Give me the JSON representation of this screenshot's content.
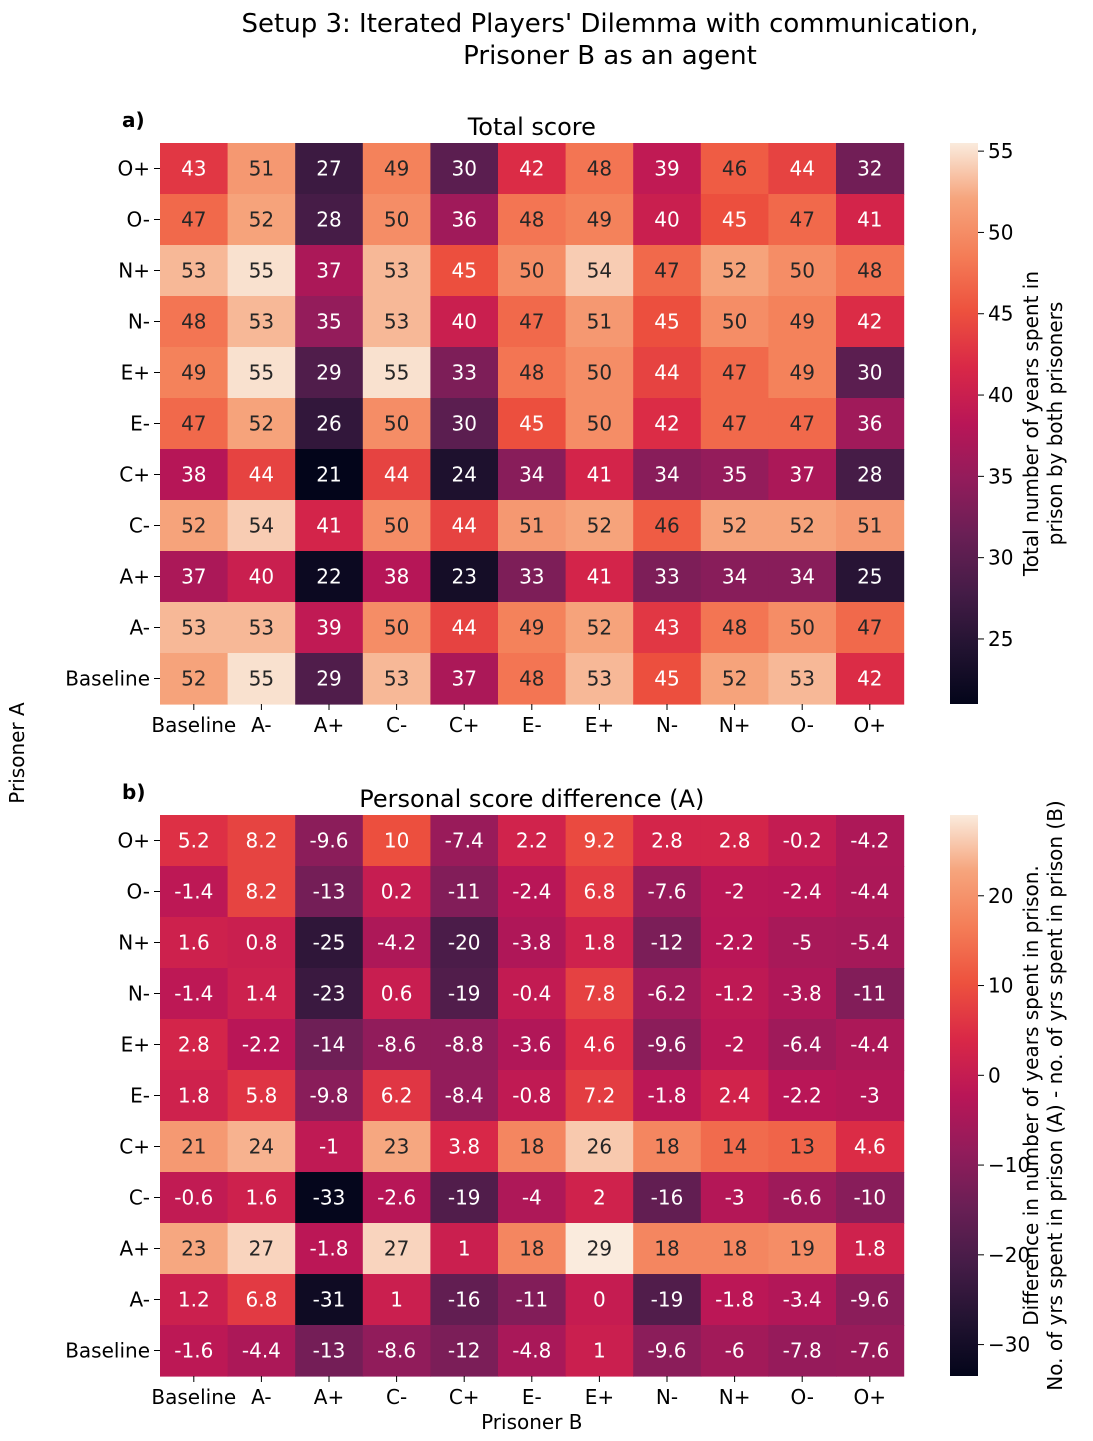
{
  "figure": {
    "title_line1": "Setup 3: Iterated Players' Dilemma with communication,",
    "title_line2": "Prisoner B as an agent",
    "ylabel": "Prisoner A",
    "xlabel": "Prisoner B"
  },
  "chart_data": [
    {
      "type": "heatmap",
      "panel": "a)",
      "title": "Total score",
      "xlabel": "Prisoner B",
      "ylabel": "Prisoner A",
      "x_categories": [
        "Baseline",
        "A-",
        "A+",
        "C-",
        "C+",
        "E-",
        "E+",
        "N-",
        "N+",
        "O-",
        "O+"
      ],
      "y_categories": [
        "O+",
        "O-",
        "N+",
        "N-",
        "E+",
        "E-",
        "C+",
        "C-",
        "A+",
        "A-",
        "Baseline"
      ],
      "values": [
        [
          43,
          51,
          27,
          49,
          30,
          42,
          48,
          39,
          46,
          44,
          32
        ],
        [
          47,
          52,
          28,
          50,
          36,
          48,
          49,
          40,
          45,
          47,
          41
        ],
        [
          53,
          55,
          37,
          53,
          45,
          50,
          54,
          47,
          52,
          50,
          48
        ],
        [
          48,
          53,
          35,
          53,
          40,
          47,
          51,
          45,
          50,
          49,
          42
        ],
        [
          49,
          55,
          29,
          55,
          33,
          48,
          50,
          44,
          47,
          49,
          30
        ],
        [
          47,
          52,
          26,
          50,
          30,
          45,
          50,
          42,
          47,
          47,
          36
        ],
        [
          38,
          44,
          21,
          44,
          24,
          34,
          41,
          34,
          35,
          37,
          28
        ],
        [
          52,
          54,
          41,
          50,
          44,
          51,
          52,
          46,
          52,
          52,
          51
        ],
        [
          37,
          40,
          22,
          38,
          23,
          33,
          41,
          33,
          34,
          34,
          25
        ],
        [
          53,
          53,
          39,
          50,
          44,
          49,
          52,
          43,
          48,
          50,
          47
        ],
        [
          52,
          55,
          29,
          53,
          37,
          48,
          53,
          45,
          52,
          53,
          42
        ]
      ],
      "labels": [
        [
          "43",
          "51",
          "27",
          "49",
          "30",
          "42",
          "48",
          "39",
          "46",
          "44",
          "32"
        ],
        [
          "47",
          "52",
          "28",
          "50",
          "36",
          "48",
          "49",
          "40",
          "45",
          "47",
          "41"
        ],
        [
          "53",
          "55",
          "37",
          "53",
          "45",
          "50",
          "54",
          "47",
          "52",
          "50",
          "48"
        ],
        [
          "48",
          "53",
          "35",
          "53",
          "40",
          "47",
          "51",
          "45",
          "50",
          "49",
          "42"
        ],
        [
          "49",
          "55",
          "29",
          "55",
          "33",
          "48",
          "50",
          "44",
          "47",
          "49",
          "30"
        ],
        [
          "47",
          "52",
          "26",
          "50",
          "30",
          "45",
          "50",
          "42",
          "47",
          "47",
          "36"
        ],
        [
          "38",
          "44",
          "21",
          "44",
          "24",
          "34",
          "41",
          "34",
          "35",
          "37",
          "28"
        ],
        [
          "52",
          "54",
          "41",
          "50",
          "44",
          "51",
          "52",
          "46",
          "52",
          "52",
          "51"
        ],
        [
          "37",
          "40",
          "22",
          "38",
          "23",
          "33",
          "41",
          "33",
          "34",
          "34",
          "25"
        ],
        [
          "53",
          "53",
          "39",
          "50",
          "44",
          "49",
          "52",
          "43",
          "48",
          "50",
          "47"
        ],
        [
          "52",
          "55",
          "29",
          "53",
          "37",
          "48",
          "53",
          "45",
          "52",
          "53",
          "42"
        ]
      ],
      "colorbar": {
        "label_line1": "Total number of years spent in",
        "label_line2": "prison by both prisoners",
        "range": [
          21,
          55.5
        ],
        "ticks": [
          25,
          30,
          35,
          40,
          45,
          50,
          55
        ],
        "tick_labels": [
          "25",
          "30",
          "35",
          "40",
          "45",
          "50",
          "55"
        ]
      }
    },
    {
      "type": "heatmap",
      "panel": "b)",
      "title": "Personal score difference (A)",
      "xlabel": "Prisoner B",
      "ylabel": "Prisoner A",
      "x_categories": [
        "Baseline",
        "A-",
        "A+",
        "C-",
        "C+",
        "E-",
        "E+",
        "N-",
        "N+",
        "O-",
        "O+"
      ],
      "y_categories": [
        "O+",
        "O-",
        "N+",
        "N-",
        "E+",
        "E-",
        "C+",
        "C-",
        "A+",
        "A-",
        "Baseline"
      ],
      "values": [
        [
          5.2,
          8.2,
          -9.6,
          10,
          -7.4,
          2.2,
          9.2,
          2.8,
          2.8,
          -0.2,
          -4.2
        ],
        [
          -1.4,
          8.2,
          -13,
          0.2,
          -11,
          -2.4,
          6.8,
          -7.6,
          -2,
          -2.4,
          -4.4
        ],
        [
          1.6,
          0.8,
          -25,
          -4.2,
          -20,
          -3.8,
          1.8,
          -12,
          -2.2,
          -5,
          -5.4
        ],
        [
          -1.4,
          1.4,
          -23,
          0.6,
          -19,
          -0.4,
          7.8,
          -6.2,
          -1.2,
          -3.8,
          -11
        ],
        [
          2.8,
          -2.2,
          -14,
          -8.6,
          -8.8,
          -3.6,
          4.6,
          -9.6,
          -2,
          -6.4,
          -4.4
        ],
        [
          1.8,
          5.8,
          -9.8,
          6.2,
          -8.4,
          -0.8,
          7.2,
          -1.8,
          2.4,
          -2.2,
          -3
        ],
        [
          21,
          24,
          -1,
          23,
          3.8,
          18,
          26,
          18,
          14,
          13,
          4.6
        ],
        [
          -0.6,
          1.6,
          -33,
          -2.6,
          -19,
          -4,
          2,
          -16,
          -3,
          -6.6,
          -10
        ],
        [
          23,
          27,
          -1.8,
          27,
          1,
          18,
          29,
          18,
          18,
          19,
          1.8
        ],
        [
          1.2,
          6.8,
          -31,
          1,
          -16,
          -11,
          0,
          -19,
          -1.8,
          -3.4,
          -9.6
        ],
        [
          -1.6,
          -4.4,
          -13,
          -8.6,
          -12,
          -4.8,
          1,
          -9.6,
          -6,
          -7.8,
          -7.6
        ]
      ],
      "labels": [
        [
          "5.2",
          "8.2",
          "-9.6",
          "10",
          "-7.4",
          "2.2",
          "9.2",
          "2.8",
          "2.8",
          "-0.2",
          "-4.2"
        ],
        [
          "-1.4",
          "8.2",
          "-13",
          "0.2",
          "-11",
          "-2.4",
          "6.8",
          "-7.6",
          "-2",
          "-2.4",
          "-4.4"
        ],
        [
          "1.6",
          "0.8",
          "-25",
          "-4.2",
          "-20",
          "-3.8",
          "1.8",
          "-12",
          "-2.2",
          "-5",
          "-5.4"
        ],
        [
          "-1.4",
          "1.4",
          "-23",
          "0.6",
          "-19",
          "-0.4",
          "7.8",
          "-6.2",
          "-1.2",
          "-3.8",
          "-11"
        ],
        [
          "2.8",
          "-2.2",
          "-14",
          "-8.6",
          "-8.8",
          "-3.6",
          "4.6",
          "-9.6",
          "-2",
          "-6.4",
          "-4.4"
        ],
        [
          "1.8",
          "5.8",
          "-9.8",
          "6.2",
          "-8.4",
          "-0.8",
          "7.2",
          "-1.8",
          "2.4",
          "-2.2",
          "-3"
        ],
        [
          "21",
          "24",
          "-1",
          "23",
          "3.8",
          "18",
          "26",
          "18",
          "14",
          "13",
          "4.6"
        ],
        [
          "-0.6",
          "1.6",
          "-33",
          "-2.6",
          "-19",
          "-4",
          "2",
          "-16",
          "-3",
          "-6.6",
          "-10"
        ],
        [
          "23",
          "27",
          "-1.8",
          "27",
          "1",
          "18",
          "29",
          "18",
          "18",
          "19",
          "1.8"
        ],
        [
          "1.2",
          "6.8",
          "-31",
          "1",
          "-16",
          "-11",
          "0",
          "-19",
          "-1.8",
          "-3.4",
          "-9.6"
        ],
        [
          "-1.6",
          "-4.4",
          "-13",
          "-8.6",
          "-12",
          "-4.8",
          "1",
          "-9.6",
          "-6",
          "-7.8",
          "-7.6"
        ]
      ],
      "colorbar": {
        "label_line1": "Difference in number of years spent in prison.",
        "label_line2": "No. of yrs spent in prison (A) - no. of yrs spent in prison (B)",
        "range": [
          -33.5,
          29
        ],
        "ticks": [
          -30,
          -20,
          -10,
          0,
          10,
          20
        ],
        "tick_labels": [
          "−30",
          "−20",
          "−10",
          "0",
          "10",
          "20"
        ]
      }
    }
  ]
}
